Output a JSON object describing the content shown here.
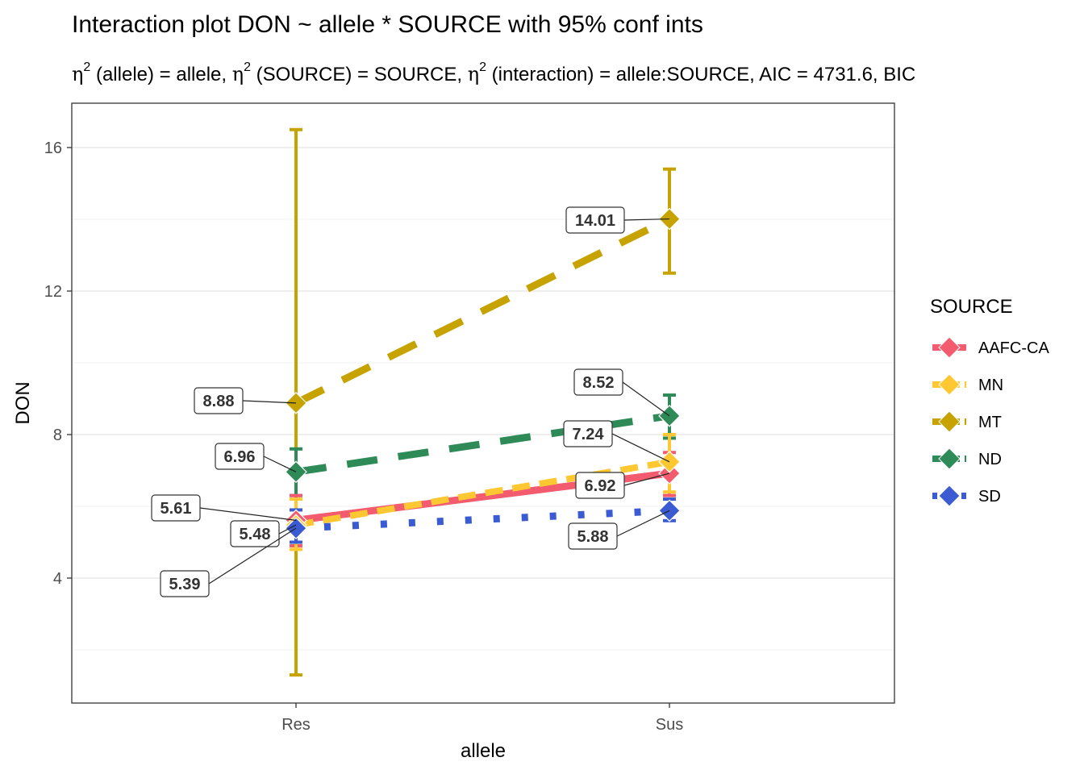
{
  "chart_data": {
    "type": "line",
    "title": "Interaction plot  DON ~ allele * SOURCE with 95% conf ints",
    "subtitle": {
      "eta": "η",
      "sup": "2",
      "allele_part": " (allele) = allele, ",
      "source_part": " (SOURCE) = SOURCE, ",
      "interaction_part": " (interaction) = allele:SOURCE, AIC = 4731.6, BIC"
    },
    "xlabel": "allele",
    "ylabel": "DON",
    "categories": [
      "Res",
      "Sus"
    ],
    "y_ticks": [
      4,
      8,
      12,
      16
    ],
    "ylim": [
      0,
      17
    ],
    "grid": true,
    "legend": {
      "title": "SOURCE",
      "position": "right"
    },
    "series": [
      {
        "name": "AAFC-CA",
        "color": "#F35B6E",
        "linetype": "solid",
        "values": [
          5.61,
          6.92
        ],
        "ci": [
          [
            4.9,
            6.3
          ],
          [
            6.3,
            7.5
          ]
        ],
        "labels": [
          "5.61",
          "6.92"
        ]
      },
      {
        "name": "MN",
        "color": "#FFC832",
        "linetype": "dashed",
        "values": [
          5.48,
          7.24
        ],
        "ci": [
          [
            4.8,
            6.2
          ],
          [
            6.4,
            8.0
          ]
        ],
        "labels": [
          "5.48",
          "7.24"
        ]
      },
      {
        "name": "MT",
        "color": "#C6A300",
        "linetype": "longdash",
        "values": [
          8.88,
          14.01
        ],
        "ci": [
          [
            1.3,
            16.5
          ],
          [
            12.5,
            15.4
          ]
        ],
        "labels": [
          "8.88",
          "14.01"
        ]
      },
      {
        "name": "ND",
        "color": "#2E8B57",
        "linetype": "longdash",
        "values": [
          6.96,
          8.52
        ],
        "ci": [
          [
            6.3,
            7.6
          ],
          [
            7.9,
            9.1
          ]
        ],
        "labels": [
          "6.96",
          "8.52"
        ]
      },
      {
        "name": "SD",
        "color": "#3A5BD2",
        "linetype": "dotted",
        "values": [
          5.39,
          5.88
        ],
        "ci": [
          [
            5.0,
            5.9
          ],
          [
            5.6,
            6.2
          ]
        ],
        "labels": [
          "5.39",
          "5.88"
        ]
      }
    ]
  }
}
